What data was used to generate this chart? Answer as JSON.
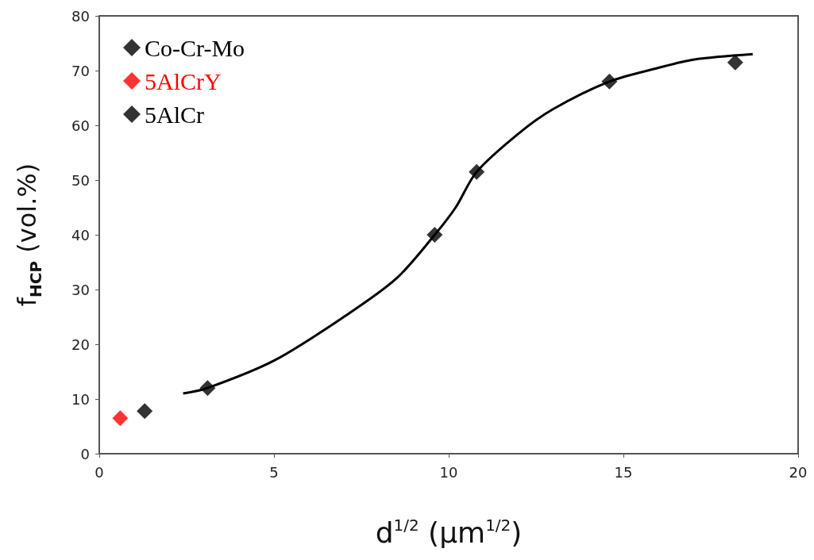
{
  "chart_data": {
    "type": "scatter",
    "xlabel": "d$^{1/2}$ (µm$^{1/2}$)",
    "ylabel": "f$_{HCP}$ (vol.%)",
    "xlim": [
      0,
      20
    ],
    "xticks": [
      0,
      5,
      10,
      15,
      20
    ],
    "ylim": [
      0,
      80
    ],
    "yticks": [
      0,
      10,
      20,
      30,
      40,
      50,
      60,
      70,
      80
    ],
    "grid": false,
    "legend": "top left",
    "marker": "diamond",
    "series": [
      {
        "name": "Co-Cr-Mo",
        "color": "#000000",
        "x": [
          3.1,
          9.6,
          10.8,
          14.6,
          18.2
        ],
        "values": [
          12,
          40,
          51.5,
          68,
          71.5
        ]
      },
      {
        "name": "5AlCrY",
        "color": "#ff0000",
        "x": [
          0.6
        ],
        "values": [
          6.5
        ]
      },
      {
        "name": "5AlCr",
        "color": "#000000",
        "x": [
          1.3
        ],
        "values": [
          7.8
        ]
      },
      {
        "type": "line",
        "marker": "none",
        "color": "#000000",
        "x": [
          2.4,
          3.1,
          5,
          7,
          8.5,
          9.6,
          10.2,
          10.8,
          12,
          13,
          14.6,
          16,
          17,
          18.7
        ],
        "values": [
          11,
          12,
          17,
          25,
          32,
          40,
          45,
          51.5,
          58.5,
          63,
          68,
          70.5,
          72,
          73
        ]
      }
    ]
  }
}
